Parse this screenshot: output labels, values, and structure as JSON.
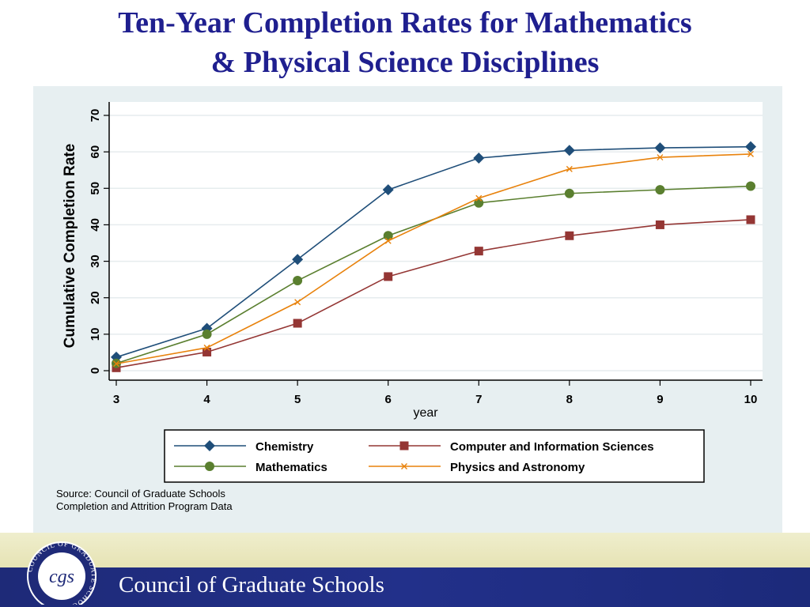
{
  "title": {
    "line1": "Ten-Year Completion Rates for Mathematics",
    "line2": "& Physical Science Disciplines"
  },
  "source": {
    "line1": "Source: Council of Graduate Schools",
    "line2": "Completion and Attrition Program Data"
  },
  "footer": {
    "org_name": "Council of Graduate Schools",
    "logo_text": "cgs",
    "logo_ring_text": "COUNCIL OF GRADUATE SCHOOLS"
  },
  "colors": {
    "title": "#1f1f8f",
    "panel_bg": "#e7eff1",
    "footer_blue": "#22308a",
    "footer_cream": "#e9e6bd"
  },
  "chart_data": {
    "type": "line",
    "xlabel": "year",
    "ylabel": "Cumulative Completion Rate",
    "x": [
      3,
      4,
      5,
      6,
      7,
      8,
      9,
      10
    ],
    "xlim": [
      3,
      10
    ],
    "ylim": [
      0,
      70
    ],
    "yticks": [
      0,
      10,
      20,
      30,
      40,
      50,
      60,
      70
    ],
    "grid": true,
    "legend_position": "bottom",
    "series": [
      {
        "name": "Chemistry",
        "color": "#1f4e79",
        "marker": "diamond",
        "values": [
          3.7,
          11.6,
          30.5,
          49.6,
          58.3,
          60.4,
          61.1,
          61.4
        ]
      },
      {
        "name": "Computer and Information Sciences",
        "color": "#943634",
        "marker": "square",
        "values": [
          0.8,
          5.1,
          13.0,
          25.8,
          32.8,
          37.0,
          40.0,
          41.4
        ]
      },
      {
        "name": "Mathematics",
        "color": "#5a7f2f",
        "marker": "circle",
        "values": [
          2.0,
          10.0,
          24.7,
          37.0,
          46.0,
          48.6,
          49.6,
          50.6
        ]
      },
      {
        "name": "Physics and Astronomy",
        "color": "#e8820c",
        "marker": "x",
        "values": [
          1.9,
          6.3,
          18.8,
          35.6,
          47.3,
          55.3,
          58.5,
          59.4
        ]
      }
    ]
  }
}
